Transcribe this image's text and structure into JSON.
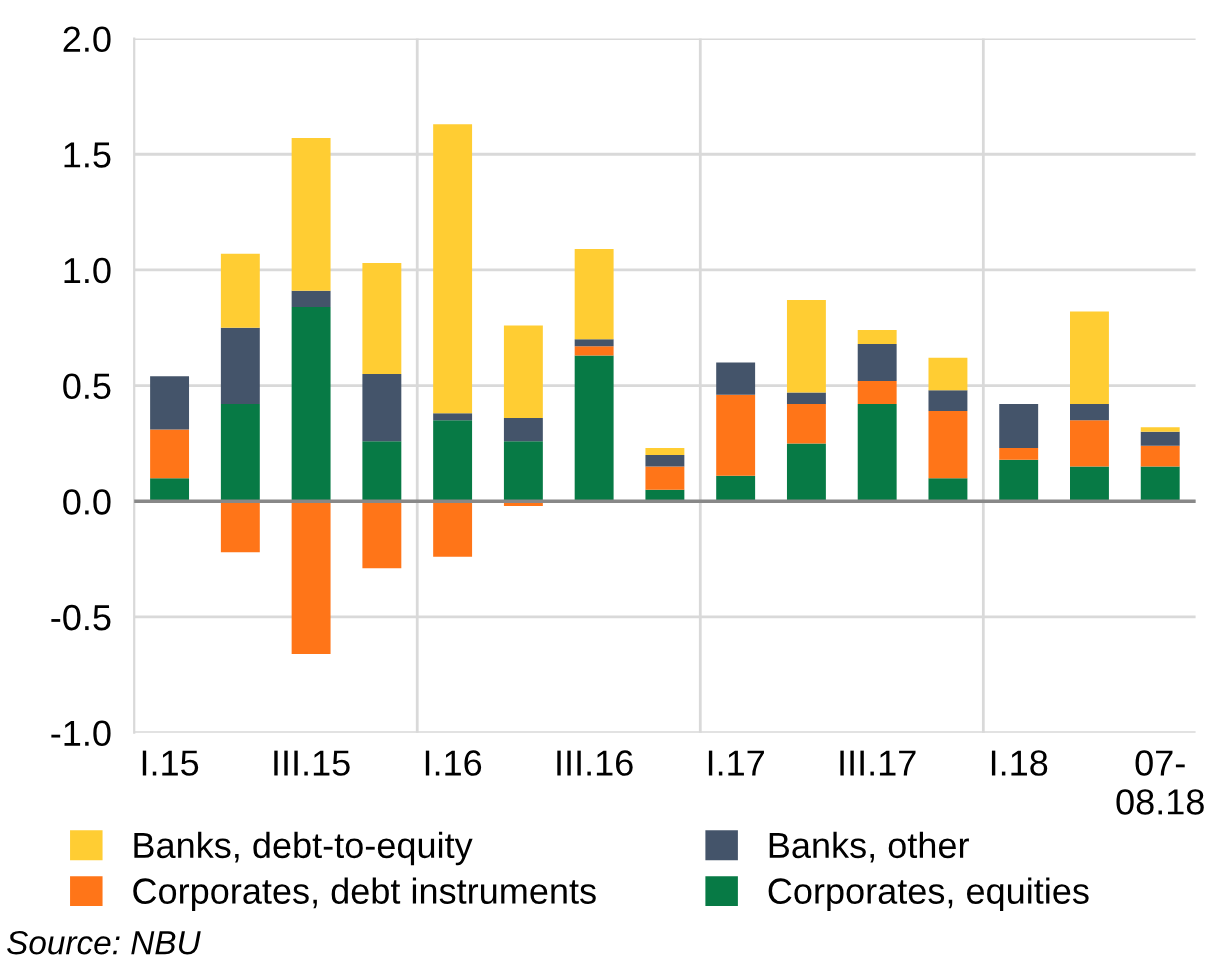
{
  "chart_data": {
    "type": "bar",
    "stacked": true,
    "categories": [
      "I.15",
      null,
      "III.15",
      null,
      "I.16",
      null,
      "III.16",
      null,
      "I.17",
      null,
      "III.17",
      null,
      "I.18",
      null,
      "07-\n08.18"
    ],
    "series": [
      {
        "name": "Corporates, equities",
        "color": "#077a45",
        "values": [
          0.1,
          0.42,
          0.84,
          0.26,
          0.35,
          0.26,
          0.63,
          0.05,
          0.11,
          0.25,
          0.42,
          0.1,
          0.18,
          0.15,
          0.15
        ]
      },
      {
        "name": "Corporates, debt instruments",
        "color": "#ff7518",
        "values": [
          0.21,
          -0.22,
          -0.66,
          -0.29,
          -0.24,
          -0.02,
          0.04,
          0.1,
          0.35,
          0.17,
          0.1,
          0.29,
          0.05,
          0.2,
          0.09
        ]
      },
      {
        "name": "Banks, other",
        "color": "#44546a",
        "values": [
          0.23,
          0.33,
          0.07,
          0.29,
          0.03,
          0.1,
          0.03,
          0.05,
          0.14,
          0.05,
          0.16,
          0.09,
          0.19,
          0.07,
          0.06
        ]
      },
      {
        "name": "Banks, debt-to-equity",
        "color": "#ffcd33",
        "values": [
          0,
          0.32,
          0.66,
          0.48,
          1.25,
          0.4,
          0.39,
          0.03,
          0,
          0.4,
          0.06,
          0.14,
          0,
          0.4,
          0.02
        ]
      }
    ],
    "ylim": [
      -1.0,
      2.0
    ],
    "yticks": [
      {
        "value": -1.0,
        "label": "-1.0"
      },
      {
        "value": -0.5,
        "label": "-0.5"
      },
      {
        "value": 0.0,
        "label": "0.0"
      },
      {
        "value": 0.5,
        "label": "0.5"
      },
      {
        "value": 1.0,
        "label": "1.0"
      },
      {
        "value": 1.5,
        "label": "1.5"
      },
      {
        "value": 2.0,
        "label": "2.0"
      }
    ],
    "grid": true,
    "legend": "bottom",
    "annotations": [
      "Source: NBU"
    ]
  }
}
